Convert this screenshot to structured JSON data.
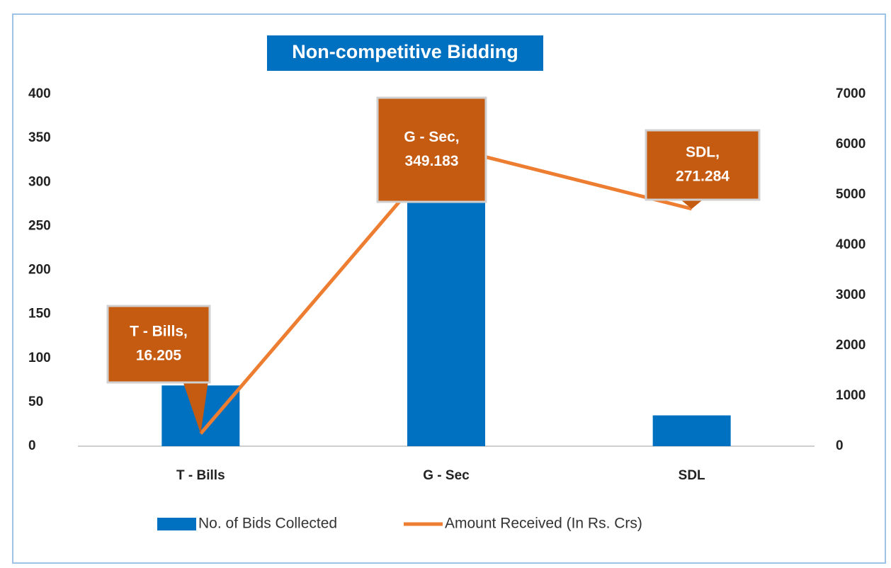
{
  "chart_data": {
    "type": "bar",
    "title": "Non-competitive Bidding",
    "categories": [
      "T - Bills",
      "G - Sec",
      "SDL"
    ],
    "series": [
      {
        "name": "No. of Bids Collected",
        "type": "bar",
        "color": "#0070c0",
        "values": [
          69,
          300,
          35
        ]
      },
      {
        "name": "Amount Received (In Rs. Crs)",
        "type": "line",
        "axis": "y2",
        "color": "#ed7d31",
        "values": [
          250,
          5950,
          4720
        ]
      }
    ],
    "annotations": [
      [
        "T - Bills,",
        "16.205"
      ],
      [
        "G - Sec,",
        "349.183"
      ],
      [
        "SDL,",
        "271.284"
      ]
    ],
    "annotation_color": "#c55a11",
    "ylim": [
      0,
      400
    ],
    "yticks": [
      0,
      50,
      100,
      150,
      200,
      250,
      300,
      350,
      400
    ],
    "y2lim": [
      0,
      7000
    ],
    "y2ticks": [
      0,
      1000,
      2000,
      3000,
      4000,
      5000,
      6000,
      7000
    ],
    "grid": false,
    "legend": "bottom"
  }
}
